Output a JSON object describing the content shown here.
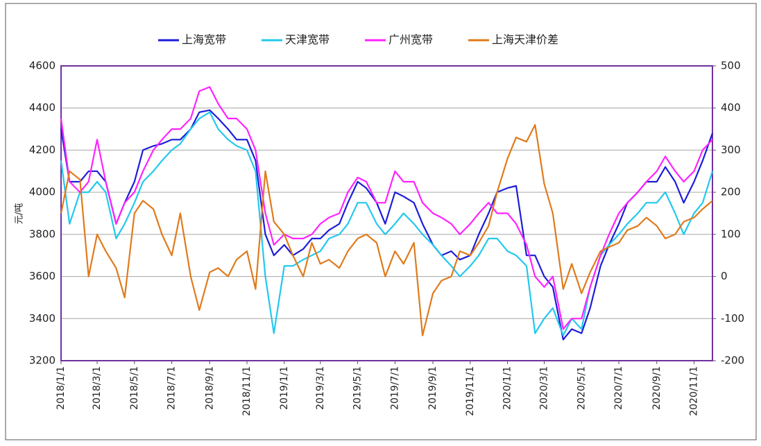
{
  "chart_data": {
    "type": "line",
    "y_label": "元/吨",
    "x": [
      "2018/1/1",
      "2018/1/15",
      "2018/2/1",
      "2018/2/15",
      "2018/3/1",
      "2018/3/15",
      "2018/4/1",
      "2018/4/15",
      "2018/5/1",
      "2018/5/15",
      "2018/6/1",
      "2018/6/15",
      "2018/7/1",
      "2018/7/15",
      "2018/8/1",
      "2018/8/15",
      "2018/9/1",
      "2018/9/15",
      "2018/10/1",
      "2018/10/15",
      "2018/11/1",
      "2018/11/15",
      "2018/12/1",
      "2018/12/15",
      "2019/1/1",
      "2019/1/15",
      "2019/2/1",
      "2019/2/15",
      "2019/3/1",
      "2019/3/15",
      "2019/4/1",
      "2019/4/15",
      "2019/5/1",
      "2019/5/15",
      "2019/6/1",
      "2019/6/15",
      "2019/7/1",
      "2019/7/15",
      "2019/8/1",
      "2019/8/15",
      "2019/9/1",
      "2019/9/15",
      "2019/10/1",
      "2019/10/15",
      "2019/11/1",
      "2019/11/15",
      "2019/12/1",
      "2019/12/15",
      "2020/1/1",
      "2020/1/15",
      "2020/2/1",
      "2020/2/15",
      "2020/3/1",
      "2020/3/15",
      "2020/4/1",
      "2020/4/15",
      "2020/5/1",
      "2020/5/15",
      "2020/6/1",
      "2020/6/15",
      "2020/7/1",
      "2020/7/15",
      "2020/8/1",
      "2020/8/15",
      "2020/9/1",
      "2020/9/15",
      "2020/10/1",
      "2020/10/15",
      "2020/11/1",
      "2020/11/15",
      "2020/12/1"
    ],
    "xlim": [
      "2018/1/1",
      "2020/12/1"
    ],
    "xticks": [
      "2018/1/1",
      "2018/3/1",
      "2018/5/1",
      "2018/7/1",
      "2018/9/1",
      "2018/11/1",
      "2019/1/1",
      "2019/3/1",
      "2019/5/1",
      "2019/7/1",
      "2019/9/1",
      "2019/11/1",
      "2020/1/1",
      "2020/3/1",
      "2020/5/1",
      "2020/7/1",
      "2020/9/1",
      "2020/11/1"
    ],
    "ylim": [
      3200,
      4600
    ],
    "yticks": [
      3200,
      3400,
      3600,
      3800,
      4000,
      4200,
      4400,
      4600
    ],
    "y2lim": [
      -200,
      500
    ],
    "y2ticks": [
      -200,
      -100,
      0,
      100,
      200,
      300,
      400,
      500
    ],
    "grid": true,
    "legend": "top",
    "series": [
      {
        "name": "上海宽带",
        "color": "#1c1cd8",
        "values": [
          4300,
          4050,
          4050,
          4100,
          4100,
          4050,
          3850,
          3950,
          4050,
          4200,
          4220,
          4230,
          4250,
          4250,
          4300,
          4380,
          4390,
          4350,
          4300,
          4250,
          4250,
          4150,
          3800,
          3700,
          3750,
          3700,
          3730,
          3780,
          3780,
          3820,
          3850,
          3950,
          4050,
          4020,
          3950,
          3850,
          4000,
          3980,
          3950,
          3850,
          3750,
          3700,
          3720,
          3680,
          3700,
          3800,
          3900,
          4000,
          4020,
          4030,
          3700,
          3700,
          3600,
          3550,
          3300,
          3350,
          3330,
          3450,
          3650,
          3750,
          3850,
          3950,
          4000,
          4050,
          4050,
          4120,
          4050,
          3950,
          4050,
          4150,
          4280
        ]
      },
      {
        "name": "天津宽带",
        "color": "#22c8ee",
        "values": [
          4150,
          3850,
          4000,
          4000,
          4050,
          4000,
          3780,
          3850,
          3950,
          4050,
          4100,
          4150,
          4200,
          4230,
          4300,
          4350,
          4380,
          4300,
          4250,
          4220,
          4200,
          4100,
          3600,
          3330,
          3650,
          3650,
          3680,
          3700,
          3720,
          3780,
          3800,
          3850,
          3950,
          3950,
          3850,
          3800,
          3850,
          3900,
          3850,
          3800,
          3750,
          3700,
          3650,
          3600,
          3650,
          3700,
          3780,
          3780,
          3720,
          3700,
          3650,
          3330,
          3400,
          3450,
          3320,
          3400,
          3350,
          3550,
          3700,
          3750,
          3800,
          3850,
          3900,
          3950,
          3950,
          4000,
          3900,
          3800,
          3900,
          3950,
          4100
        ]
      },
      {
        "name": "广州宽带",
        "color": "#ff22ff",
        "values": [
          4350,
          4050,
          4000,
          4050,
          4250,
          4050,
          3850,
          3950,
          4000,
          4100,
          4200,
          4250,
          4300,
          4300,
          4350,
          4480,
          4500,
          4420,
          4350,
          4350,
          4300,
          4200,
          3900,
          3750,
          3800,
          3780,
          3780,
          3800,
          3850,
          3880,
          3900,
          4000,
          4070,
          4050,
          3950,
          3950,
          4100,
          4050,
          4050,
          3950,
          3900,
          3880,
          3850,
          3800,
          3850,
          3900,
          3950,
          3900,
          3900,
          3850,
          3750,
          3600,
          3550,
          3600,
          3350,
          3400,
          3400,
          3550,
          3700,
          3800,
          3900,
          3950,
          4000,
          4050,
          4100,
          4170,
          4100,
          4050,
          4100,
          4200,
          4250
        ]
      },
      {
        "name": "上海天津价差",
        "color": "#e07a1a",
        "axis": "y2",
        "values": [
          150,
          250,
          230,
          0,
          100,
          60,
          20,
          -50,
          150,
          180,
          160,
          100,
          50,
          150,
          0,
          -80,
          10,
          20,
          0,
          40,
          60,
          -30,
          250,
          130,
          100,
          50,
          0,
          80,
          30,
          40,
          20,
          60,
          90,
          100,
          80,
          0,
          60,
          30,
          80,
          -140,
          -40,
          -10,
          0,
          60,
          50,
          80,
          120,
          200,
          280,
          330,
          320,
          360,
          220,
          150,
          -30,
          30,
          -40,
          10,
          60,
          70,
          80,
          110,
          120,
          140,
          120,
          90,
          100,
          130,
          140,
          160,
          180
        ]
      }
    ]
  }
}
